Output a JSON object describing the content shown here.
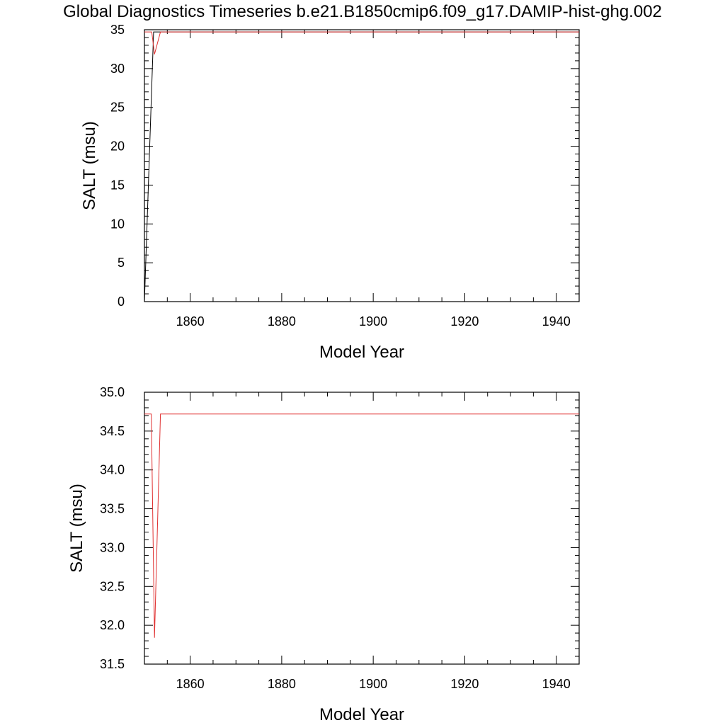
{
  "title": "Global Diagnostics Timeseries b.e21.B1850cmip6.f09_g17.DAMIP-hist-ghg.002",
  "colors": {
    "series_black": "#000000",
    "series_red": "#e03030"
  },
  "chart_data": [
    {
      "type": "line",
      "xlabel": "Model Year",
      "ylabel": "SALT (msu)",
      "xlim": [
        1850,
        1945
      ],
      "ylim": [
        0,
        35
      ],
      "xticks": [
        1860,
        1880,
        1900,
        1920,
        1940
      ],
      "xtick_labels": [
        "1860",
        "1880",
        "1900",
        "1920",
        "1940"
      ],
      "yticks": [
        0,
        5,
        10,
        15,
        20,
        25,
        30,
        35
      ],
      "ytick_labels": [
        "0",
        "5",
        "10",
        "15",
        "20",
        "25",
        "30",
        "35"
      ],
      "series": [
        {
          "color": "#000000",
          "x": [
            1850.0,
            1852.0,
            1852.2,
            1945.0
          ],
          "y": [
            0.0,
            34.72,
            34.72,
            34.72
          ]
        },
        {
          "color": "#e03030",
          "x": [
            1850.0,
            1851.6,
            1852.2,
            1853.5,
            1945.0
          ],
          "y": [
            34.72,
            34.72,
            31.84,
            34.72,
            34.72
          ]
        }
      ]
    },
    {
      "type": "line",
      "xlabel": "Model Year",
      "ylabel": "SALT (msu)",
      "xlim": [
        1850,
        1945
      ],
      "ylim": [
        31.5,
        35.0
      ],
      "xticks": [
        1860,
        1880,
        1900,
        1920,
        1940
      ],
      "xtick_labels": [
        "1860",
        "1880",
        "1900",
        "1920",
        "1940"
      ],
      "yticks": [
        31.5,
        32.0,
        32.5,
        33.0,
        33.5,
        34.0,
        34.5,
        35.0
      ],
      "ytick_labels": [
        "31.5",
        "32.0",
        "32.5",
        "33.0",
        "33.5",
        "34.0",
        "34.5",
        "35.0"
      ],
      "series": [
        {
          "color": "#e03030",
          "x": [
            1850.0,
            1851.5,
            1852.2,
            1853.5,
            1945.0
          ],
          "y": [
            34.72,
            34.72,
            31.84,
            34.72,
            34.72
          ]
        }
      ]
    }
  ]
}
